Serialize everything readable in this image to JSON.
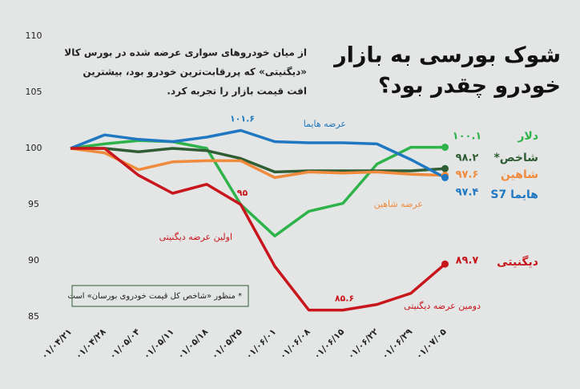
{
  "chart_data": {
    "type": "line",
    "title": [
      "شوک بورسی به بازار",
      "خودرو چقدر بود؟"
    ],
    "subtitle": [
      "از میان خودروهای سواری عرضه شده در بورس کالا",
      "«دیگنیتی» که پررقابت‌ترین خودرو بود، بیشترین",
      "افت قیمت بازار را تجربه کرد."
    ],
    "annotations": [
      "عرضه هایما",
      "عرضه شاهین",
      "اولین عرضه دیگنیتی",
      "دومین عرضه دیگنیتی"
    ],
    "footnote": "* منظور «شاخص کل قیمت خودروی بورسان» است",
    "categories": [
      "۰۱/۰۴/۲۱",
      "۰۱/۰۴/۲۸",
      "۰۱/۰۵/۰۴",
      "۰۱/۰۵/۱۱",
      "۰۱/۰۵/۱۸",
      "۰۱/۰۵/۲۵",
      "۰۱/۰۶/۰۱",
      "۰۱/۰۶/۰۸",
      "۰۱/۰۶/۱۵",
      "۰۱/۰۶/۲۲",
      "۰۱/۰۶/۲۹",
      "۰۱/۰۷/۰۵"
    ],
    "ylim": [
      85,
      110
    ],
    "yticks": [
      85,
      90,
      95,
      100,
      105,
      110
    ],
    "series": [
      {
        "name": "دلار",
        "color": "#2db34a",
        "values": [
          100,
          100.4,
          100.7,
          100.6,
          100,
          95,
          92.2,
          94.4,
          95.1,
          98.6,
          100.1,
          100.1
        ],
        "value_labels": [
          null,
          null,
          null,
          null,
          null,
          null,
          null,
          null,
          null,
          null,
          null,
          "۱۰۰.۱"
        ]
      },
      {
        "name": "شاخص*",
        "color": "#2f5d34",
        "values": [
          100,
          100,
          99.7,
          100,
          99.8,
          99.1,
          97.9,
          98,
          98,
          98,
          98,
          98.2
        ],
        "value_labels": [
          null,
          null,
          null,
          null,
          null,
          null,
          null,
          null,
          null,
          null,
          null,
          "۹۸.۲"
        ]
      },
      {
        "name": "شاهین",
        "color": "#f08a3c",
        "values": [
          100,
          99.6,
          98.1,
          98.8,
          98.9,
          98.9,
          97.4,
          97.9,
          97.8,
          97.9,
          97.7,
          97.6
        ],
        "value_labels": [
          null,
          null,
          null,
          null,
          null,
          null,
          null,
          null,
          null,
          null,
          null,
          "۹۷.۶"
        ]
      },
      {
        "name": "هایما S7",
        "color": "#1f78c1",
        "values": [
          100,
          101.2,
          100.8,
          100.6,
          101,
          101.6,
          100.6,
          100.5,
          100.5,
          100.4,
          99,
          97.4
        ],
        "value_labels": [
          null,
          null,
          null,
          null,
          null,
          "۱۰۱.۶",
          null,
          null,
          null,
          null,
          null,
          "۹۷.۴"
        ]
      },
      {
        "name": "دیگنیتی",
        "color": "#c8161d",
        "values": [
          100,
          100,
          97.6,
          96,
          96.8,
          95,
          89.5,
          85.6,
          85.6,
          86.1,
          87.1,
          89.7
        ],
        "value_labels": [
          null,
          null,
          null,
          null,
          null,
          "۹۵",
          null,
          null,
          "۸۵.۶",
          null,
          null,
          "۸۹.۷"
        ]
      }
    ]
  }
}
